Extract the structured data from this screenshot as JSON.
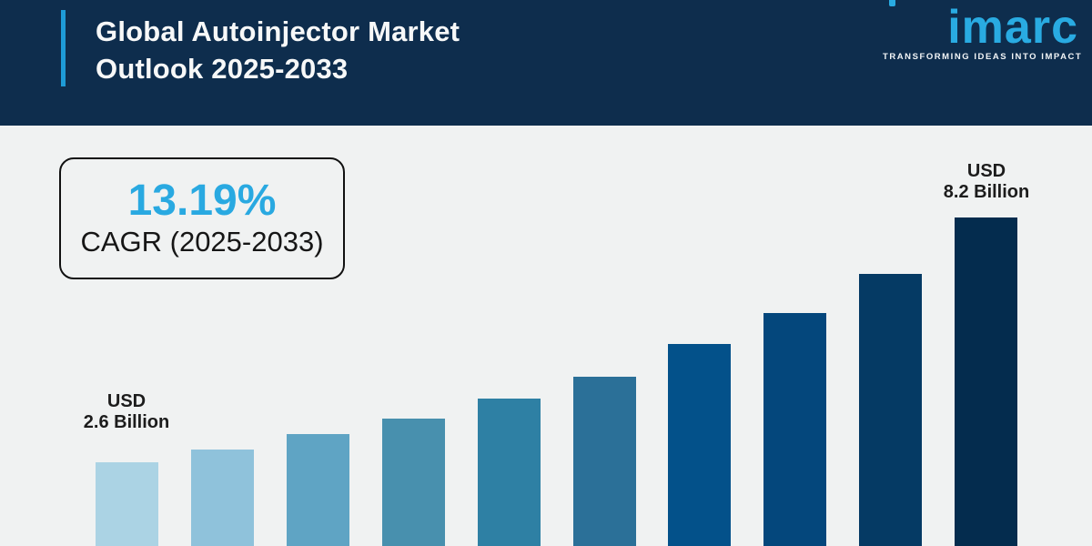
{
  "header": {
    "title_line1": "Global Autoinjector Market",
    "title_line2": "Outlook 2025-2033",
    "background_color": "#0e2d4d",
    "accent_color": "#1e9bd7",
    "logo": {
      "text": "imarc",
      "tagline": "TRANSFORMING IDEAS INTO IMPACT",
      "color": "#29abe2"
    }
  },
  "cagr_box": {
    "value": "13.19%",
    "label": "CAGR (2025-2033)",
    "value_color": "#29a9e1"
  },
  "chart_data": {
    "type": "bar",
    "title": "Global Autoinjector Market Outlook 2025-2033",
    "unit": "USD Billion",
    "values": [
      2.6,
      2.9,
      3.25,
      3.6,
      4.05,
      4.55,
      5.3,
      6.0,
      6.9,
      8.2
    ],
    "bar_colors": [
      "#abd3e4",
      "#8fc2db",
      "#5fa4c4",
      "#4890ae",
      "#2e80a4",
      "#2b7098",
      "#03518a",
      "#04477c",
      "#053a64",
      "#042c4e"
    ],
    "first_bar_label": {
      "line1": "USD",
      "line2": "2.6 Billion"
    },
    "last_bar_label": {
      "line1": "USD",
      "line2": "8.2 Billion"
    },
    "x_tick_labels_visible": false,
    "y_axis_visible": false,
    "grid": false,
    "background_color": "#f0f2f2"
  }
}
